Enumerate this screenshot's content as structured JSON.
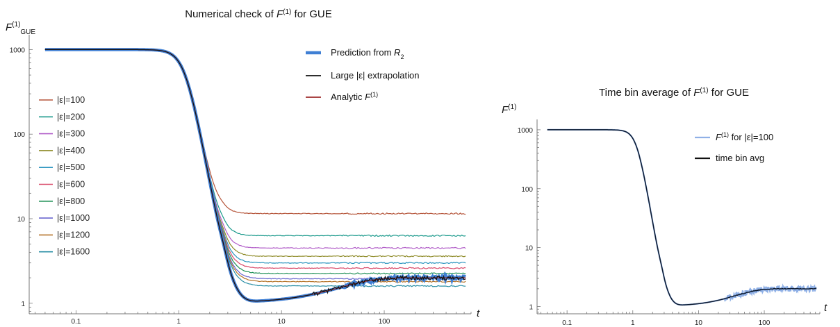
{
  "chart_data": [
    {
      "type": "line",
      "title": "Numerical check of F⁽¹⁾ for GUE",
      "title_parts": [
        "Numerical check of ",
        "F",
        "(1)",
        " for GUE"
      ],
      "ylabel_parts": [
        "F",
        "(1)",
        "GUE"
      ],
      "xlabel": "t",
      "x_scale": "log",
      "y_scale": "log",
      "xlim": [
        0.035,
        700
      ],
      "ylim": [
        0.75,
        1500
      ],
      "x_ticks": [
        {
          "value": 0.1,
          "label": "0.1"
        },
        {
          "value": 1,
          "label": "1"
        },
        {
          "value": 10,
          "label": "10"
        },
        {
          "value": 100,
          "label": "100"
        }
      ],
      "y_ticks": [
        {
          "value": 1,
          "label": "1"
        },
        {
          "value": 10,
          "label": "10"
        },
        {
          "value": 100,
          "label": "100"
        },
        {
          "value": 1000,
          "label": "1000"
        }
      ],
      "legend_main": [
        {
          "label": "Prediction from R",
          "sub": "2",
          "color": "#3f7fd4"
        },
        {
          "label": "Large |ε| extrapolation",
          "color": "#111111"
        },
        {
          "label": "Analytic F",
          "sup": "(1)",
          "color": "#9e2b2b"
        }
      ],
      "series": [
        {
          "name": "|ε|=100",
          "color": "#b5553a",
          "plateau": 11.5
        },
        {
          "name": "|ε|=200",
          "color": "#1c9a8c",
          "plateau": 6.3
        },
        {
          "name": "|ε|=300",
          "color": "#b25fc9",
          "plateau": 4.5
        },
        {
          "name": "|ε|=400",
          "color": "#8d8a26",
          "plateau": 3.6
        },
        {
          "name": "|ε|=500",
          "color": "#2b95bf",
          "plateau": 3.0
        },
        {
          "name": "|ε|=600",
          "color": "#d94a6a",
          "plateau": 2.6
        },
        {
          "name": "|ε|=800",
          "color": "#1d8f55",
          "plateau": 2.25
        },
        {
          "name": "|ε|=1000",
          "color": "#6a67cf",
          "plateau": 1.95
        },
        {
          "name": "|ε|=1200",
          "color": "#b5742a",
          "plateau": 1.8
        },
        {
          "name": "|ε|=1600",
          "color": "#2a8fa6",
          "plateau": 1.6
        }
      ],
      "legend_placement": "left",
      "main_legend_placement": "top-right"
    },
    {
      "type": "line",
      "title": "Time bin average of F⁽¹⁾ for GUE",
      "title_parts": [
        "Time bin average of ",
        "F",
        "(1)",
        " for GUE"
      ],
      "ylabel_parts": [
        "F",
        "(1)",
        ""
      ],
      "xlabel": "t",
      "x_scale": "log",
      "y_scale": "log",
      "xlim": [
        0.035,
        700
      ],
      "ylim": [
        0.75,
        1500
      ],
      "x_ticks": [
        {
          "value": 0.1,
          "label": "0.1"
        },
        {
          "value": 1,
          "label": "1"
        },
        {
          "value": 10,
          "label": "10"
        },
        {
          "value": 100,
          "label": "100"
        }
      ],
      "y_ticks": [
        {
          "value": 1,
          "label": "1"
        },
        {
          "value": 10,
          "label": "10"
        },
        {
          "value": 100,
          "label": "100"
        },
        {
          "value": 1000,
          "label": "1000"
        }
      ],
      "legend": [
        {
          "label": "F",
          "sup": "(1)",
          "after": " for |ε|=100",
          "color": "#8fb0e6"
        },
        {
          "label": "time bin avg",
          "color": "#111111"
        }
      ],
      "legend_placement": "top-right"
    }
  ]
}
